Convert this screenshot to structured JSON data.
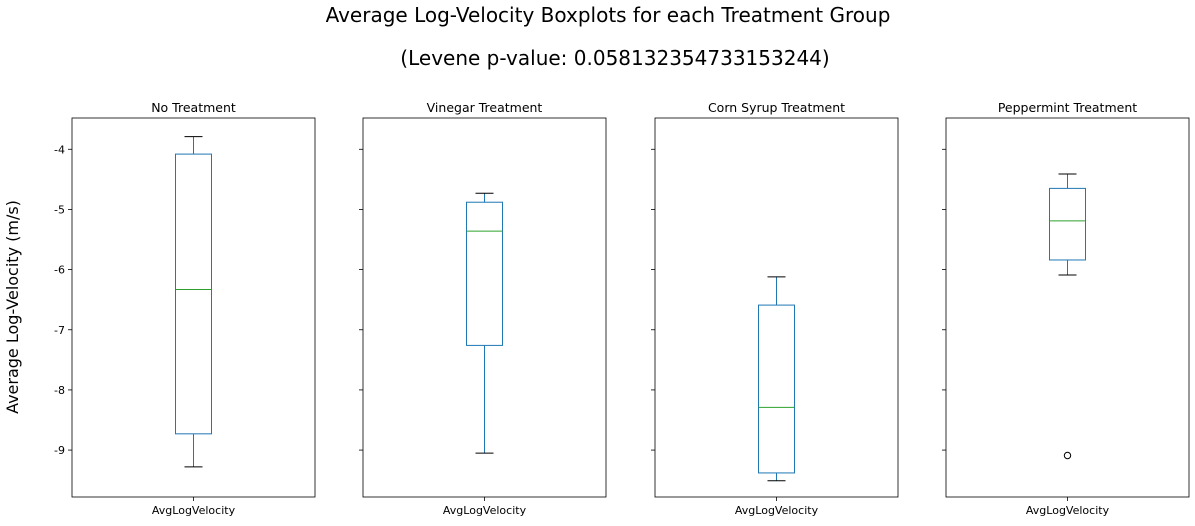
{
  "chart_data": {
    "type": "box",
    "title": "Average Log-Velocity Boxplots for each Treatment Group",
    "subtitle": "(Levene p-value: 0.058132354733153244)",
    "ylabel": "Average Log-Velocity (m/s)",
    "ylim": [
      -9.78,
      -3.48
    ],
    "yticks": [
      "-4",
      "-5",
      "-6",
      "-7",
      "-8",
      "-9"
    ],
    "ytick_values": [
      -4,
      -5,
      -6,
      -7,
      -8,
      -9
    ],
    "box_color": "#1f77b4",
    "median_color": "#2ca02c",
    "panels": [
      {
        "title": "No Treatment",
        "xlabel": "AvgLogVelocity",
        "whisker_low": -9.28,
        "q1": -8.73,
        "median": -6.33,
        "q3": -4.08,
        "whisker_high": -3.79,
        "outliers": []
      },
      {
        "title": "Vinegar Treatment",
        "xlabel": "AvgLogVelocity",
        "whisker_low": -9.05,
        "q1": -7.26,
        "median": -5.36,
        "q3": -4.88,
        "whisker_high": -4.73,
        "outliers": []
      },
      {
        "title": "Corn Syrup Treatment",
        "xlabel": "AvgLogVelocity",
        "whisker_low": -9.51,
        "q1": -9.38,
        "median": -8.29,
        "q3": -6.59,
        "whisker_high": -6.12,
        "outliers": []
      },
      {
        "title": "Peppermint Treatment",
        "xlabel": "AvgLogVelocity",
        "whisker_low": -6.09,
        "q1": -5.84,
        "median": -5.19,
        "q3": -4.65,
        "whisker_high": -4.41,
        "outliers": [
          -9.09
        ]
      }
    ]
  }
}
